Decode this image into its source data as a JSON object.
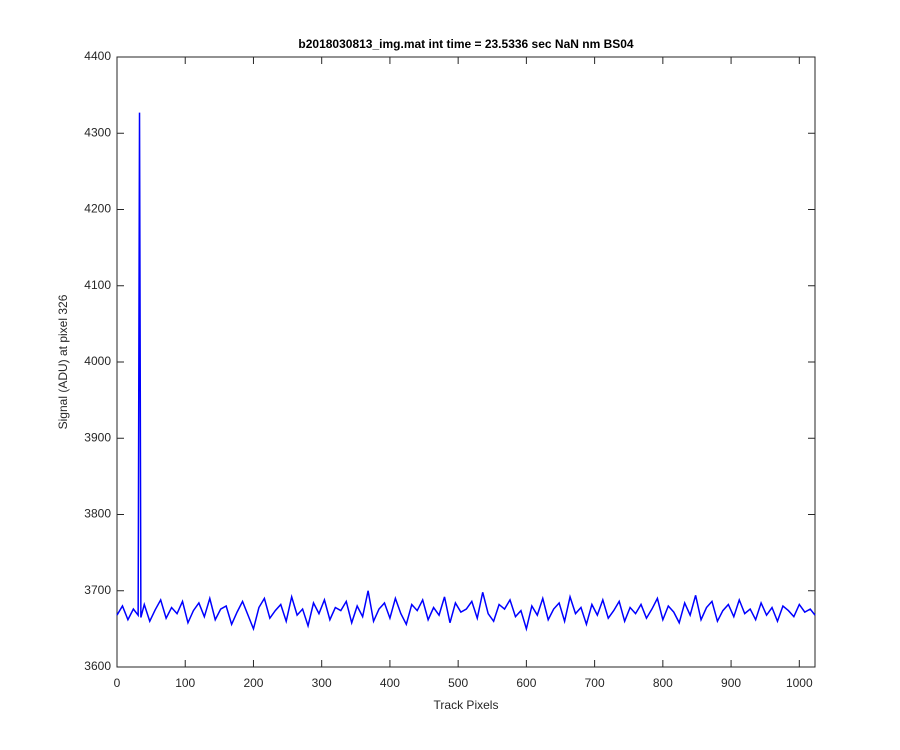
{
  "chart_data": {
    "type": "line",
    "title": "b2018030813_img.mat int time = 23.5336 sec  NaN nm BS04",
    "x_label": "Track Pixels",
    "y_label": "Signal (ADU) at pixel 326",
    "xlim": [
      0,
      1023
    ],
    "ylim": [
      3600,
      4400
    ],
    "xticks": [
      0,
      100,
      200,
      300,
      400,
      500,
      600,
      700,
      800,
      900,
      1000
    ],
    "yticks": [
      3600,
      3700,
      3800,
      3900,
      4000,
      4100,
      4200,
      4300,
      4400
    ],
    "grid": false,
    "series": [
      {
        "color": "#0000ff",
        "x": [
          0,
          8,
          16,
          24,
          31,
          33,
          35,
          40,
          48,
          56,
          64,
          72,
          80,
          88,
          96,
          104,
          112,
          120,
          128,
          136,
          144,
          152,
          160,
          168,
          176,
          184,
          192,
          200,
          208,
          216,
          224,
          232,
          240,
          248,
          256,
          264,
          272,
          280,
          288,
          296,
          304,
          312,
          320,
          328,
          336,
          344,
          352,
          360,
          368,
          376,
          384,
          392,
          400,
          408,
          416,
          424,
          432,
          440,
          448,
          456,
          464,
          472,
          480,
          488,
          496,
          504,
          512,
          520,
          528,
          536,
          544,
          552,
          560,
          568,
          576,
          584,
          592,
          600,
          608,
          616,
          624,
          632,
          640,
          648,
          656,
          664,
          672,
          680,
          688,
          696,
          704,
          712,
          720,
          728,
          736,
          744,
          752,
          760,
          768,
          776,
          784,
          792,
          800,
          808,
          816,
          824,
          832,
          840,
          848,
          856,
          864,
          872,
          880,
          888,
          896,
          904,
          912,
          920,
          928,
          936,
          944,
          952,
          960,
          968,
          976,
          984,
          992,
          1000,
          1008,
          1016,
          1023
        ],
        "values": [
          3668,
          3680,
          3662,
          3676,
          3668,
          4327,
          3665,
          3682,
          3660,
          3675,
          3688,
          3664,
          3678,
          3670,
          3686,
          3658,
          3674,
          3684,
          3666,
          3690,
          3662,
          3676,
          3680,
          3656,
          3672,
          3686,
          3668,
          3650,
          3678,
          3690,
          3664,
          3674,
          3682,
          3660,
          3692,
          3668,
          3676,
          3654,
          3684,
          3670,
          3688,
          3662,
          3678,
          3674,
          3686,
          3658,
          3680,
          3666,
          3700,
          3660,
          3676,
          3684,
          3664,
          3690,
          3670,
          3656,
          3682,
          3674,
          3688,
          3662,
          3678,
          3668,
          3692,
          3658,
          3684,
          3672,
          3676,
          3686,
          3664,
          3698,
          3670,
          3660,
          3682,
          3676,
          3688,
          3666,
          3674,
          3650,
          3680,
          3668,
          3690,
          3662,
          3676,
          3684,
          3660,
          3692,
          3670,
          3678,
          3656,
          3682,
          3668,
          3688,
          3664,
          3674,
          3686,
          3660,
          3678,
          3670,
          3682,
          3664,
          3676,
          3690,
          3662,
          3680,
          3672,
          3658,
          3684,
          3668,
          3694,
          3662,
          3678,
          3686,
          3660,
          3674,
          3682,
          3666,
          3688,
          3670,
          3676,
          3662,
          3684,
          3668,
          3678,
          3660,
          3680,
          3674,
          3666,
          3682,
          3672,
          3676,
          3668
        ]
      }
    ]
  }
}
